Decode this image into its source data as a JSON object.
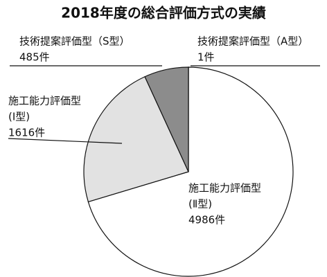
{
  "chart_data": {
    "type": "pie",
    "title": "2018年度の総合評価方式の実績",
    "categories": [
      [
        "技術提案評価型（A型）"
      ],
      [
        "施工能力評価型",
        "(Ⅱ型)"
      ],
      [
        "施工能力評価型",
        "(Ⅰ型)"
      ],
      [
        "技術提案評価型（S型）"
      ]
    ],
    "values": [
      1,
      4986,
      1616,
      485
    ],
    "value_labels": [
      "1件",
      "4986件",
      "1616件",
      "485件"
    ],
    "colors": [
      "#555555",
      "#ffffff",
      "#e2e2e2",
      "#8c8c8c"
    ]
  }
}
